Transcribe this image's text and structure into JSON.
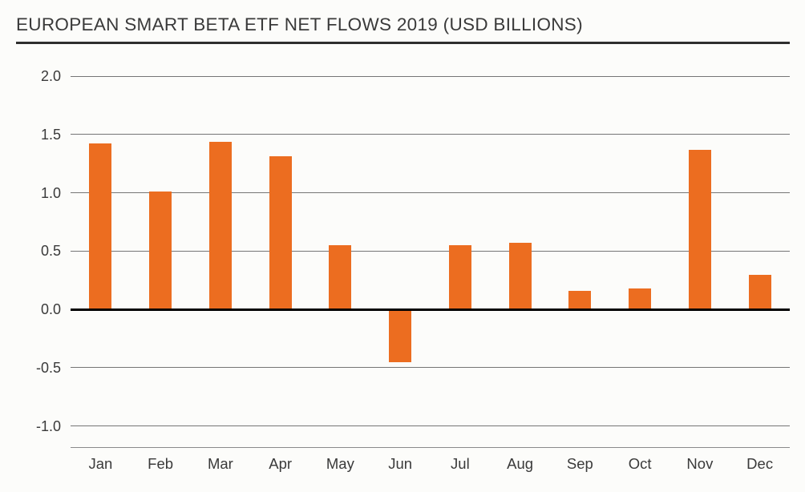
{
  "title": "EUROPEAN SMART BETA ETF NET FLOWS 2019 (USD BILLIONS)",
  "colors": {
    "bar": "#EC6D20",
    "gridline": "#757575",
    "zero_line": "#000000",
    "title_rule": "#2e2e2e",
    "text": "#3a3a3a",
    "background": "#FCFCFA"
  },
  "chart_data": {
    "type": "bar",
    "title": "EUROPEAN SMART BETA ETF NET FLOWS 2019 (USD BILLIONS)",
    "categories": [
      "Jan",
      "Feb",
      "Mar",
      "Apr",
      "May",
      "Jun",
      "Jul",
      "Aug",
      "Sep",
      "Oct",
      "Nov",
      "Dec"
    ],
    "values": [
      1.42,
      1.01,
      1.44,
      1.31,
      0.55,
      -0.45,
      0.55,
      0.57,
      0.16,
      0.18,
      1.37,
      0.3
    ],
    "xlabel": "",
    "ylabel": "",
    "ylim": [
      -1.0,
      2.0
    ],
    "yticks": [
      2.0,
      1.5,
      1.0,
      0.5,
      0.0,
      -0.5,
      -1.0
    ],
    "ytick_labels": [
      "2.0",
      "1.5",
      "1.0",
      "0.5",
      "0.0",
      "-0.5",
      "-1.0"
    ],
    "grid": true,
    "legend": false,
    "bar_color": "#EC6D20"
  }
}
